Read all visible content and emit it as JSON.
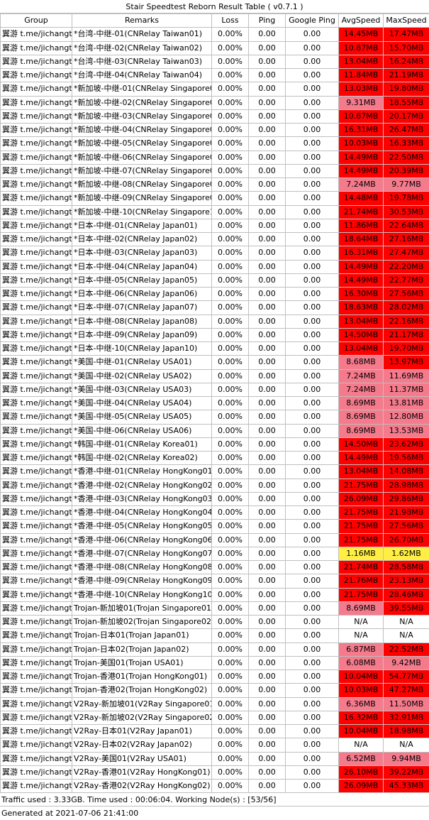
{
  "title": "Stair Speedtest Reborn Result Table ( v0.7.1 )",
  "headers": [
    "Group",
    "Remarks",
    "Loss",
    "Ping",
    "Google Ping",
    "AvgSpeed",
    "MaxSpeed"
  ],
  "colors": {
    "red": "#ff0000",
    "light_red": "#f47a8c",
    "yellow": "#ffee44",
    "white": "#ffffff",
    "border": "#bfbfbf"
  },
  "rows": [
    {
      "group": "翼游 t.me/jichangtj",
      "remarks": "*台湾-中继-01(CNRelay Taiwan01)",
      "loss": "0.00%",
      "ping": "0.00",
      "gping": "0.00",
      "avg": "14.45MB",
      "avg_color": "red",
      "max": "17.47MB",
      "max_color": "red"
    },
    {
      "group": "翼游 t.me/jichangtj",
      "remarks": "*台湾-中继-02(CNRelay Taiwan02)",
      "loss": "0.00%",
      "ping": "0.00",
      "gping": "0.00",
      "avg": "10.87MB",
      "avg_color": "red",
      "max": "15.70MB",
      "max_color": "red"
    },
    {
      "group": "翼游 t.me/jichangtj",
      "remarks": "*台湾-中继-03(CNRelay Taiwan03)",
      "loss": "0.00%",
      "ping": "0.00",
      "gping": "0.00",
      "avg": "13.04MB",
      "avg_color": "red",
      "max": "16.24MB",
      "max_color": "red"
    },
    {
      "group": "翼游 t.me/jichangtj",
      "remarks": "*台湾-中继-04(CNRelay Taiwan04)",
      "loss": "0.00%",
      "ping": "0.00",
      "gping": "0.00",
      "avg": "11.84MB",
      "avg_color": "red",
      "max": "21.19MB",
      "max_color": "red"
    },
    {
      "group": "翼游 t.me/jichangtj",
      "remarks": "*新加坡-中继-01(CNRelay Singapore01)",
      "loss": "0.00%",
      "ping": "0.00",
      "gping": "0.00",
      "avg": "13.03MB",
      "avg_color": "red",
      "max": "19.80MB",
      "max_color": "red"
    },
    {
      "group": "翼游 t.me/jichangtj",
      "remarks": "*新加坡-中继-02(CNRelay Singapore02)",
      "loss": "0.00%",
      "ping": "0.00",
      "gping": "0.00",
      "avg": "9.31MB",
      "avg_color": "light_red",
      "max": "18.55MB",
      "max_color": "red"
    },
    {
      "group": "翼游 t.me/jichangtj",
      "remarks": "*新加坡-中继-03(CNRelay Singapore03)",
      "loss": "0.00%",
      "ping": "0.00",
      "gping": "0.00",
      "avg": "10.87MB",
      "avg_color": "red",
      "max": "20.17MB",
      "max_color": "red"
    },
    {
      "group": "翼游 t.me/jichangtj",
      "remarks": "*新加坡-中继-04(CNRelay Singapore04)",
      "loss": "0.00%",
      "ping": "0.00",
      "gping": "0.00",
      "avg": "16.31MB",
      "avg_color": "red",
      "max": "26.47MB",
      "max_color": "red"
    },
    {
      "group": "翼游 t.me/jichangtj",
      "remarks": "*新加坡-中继-05(CNRelay Singapore05)",
      "loss": "0.00%",
      "ping": "0.00",
      "gping": "0.00",
      "avg": "10.03MB",
      "avg_color": "red",
      "max": "16.33MB",
      "max_color": "red"
    },
    {
      "group": "翼游 t.me/jichangtj",
      "remarks": "*新加坡-中继-06(CNRelay Singapore06)",
      "loss": "0.00%",
      "ping": "0.00",
      "gping": "0.00",
      "avg": "14.49MB",
      "avg_color": "red",
      "max": "22.50MB",
      "max_color": "red"
    },
    {
      "group": "翼游 t.me/jichangtj",
      "remarks": "*新加坡-中继-07(CNRelay Singapore07)",
      "loss": "0.00%",
      "ping": "0.00",
      "gping": "0.00",
      "avg": "14.49MB",
      "avg_color": "red",
      "max": "20.39MB",
      "max_color": "red"
    },
    {
      "group": "翼游 t.me/jichangtj",
      "remarks": "*新加坡-中继-08(CNRelay Singapore08)",
      "loss": "0.00%",
      "ping": "0.00",
      "gping": "0.00",
      "avg": "7.24MB",
      "avg_color": "light_red",
      "max": "9.77MB",
      "max_color": "light_red"
    },
    {
      "group": "翼游 t.me/jichangtj",
      "remarks": "*新加坡-中继-09(CNRelay Singapore09)",
      "loss": "0.00%",
      "ping": "0.00",
      "gping": "0.00",
      "avg": "14.48MB",
      "avg_color": "red",
      "max": "19.78MB",
      "max_color": "red"
    },
    {
      "group": "翼游 t.me/jichangtj",
      "remarks": "*新加坡-中继-10(CNRelay Singapore10)",
      "loss": "0.00%",
      "ping": "0.00",
      "gping": "0.00",
      "avg": "21.74MB",
      "avg_color": "red",
      "max": "30.53MB",
      "max_color": "red"
    },
    {
      "group": "翼游 t.me/jichangtj",
      "remarks": "*日本-中继-01(CNRelay Japan01)",
      "loss": "0.00%",
      "ping": "0.00",
      "gping": "0.00",
      "avg": "11.86MB",
      "avg_color": "red",
      "max": "22.64MB",
      "max_color": "red"
    },
    {
      "group": "翼游 t.me/jichangtj",
      "remarks": "*日本-中继-02(CNRelay Japan02)",
      "loss": "0.00%",
      "ping": "0.00",
      "gping": "0.00",
      "avg": "18.64MB",
      "avg_color": "red",
      "max": "27.16MB",
      "max_color": "red"
    },
    {
      "group": "翼游 t.me/jichangtj",
      "remarks": "*日本-中继-03(CNRelay Japan03)",
      "loss": "0.00%",
      "ping": "0.00",
      "gping": "0.00",
      "avg": "16.31MB",
      "avg_color": "red",
      "max": "27.47MB",
      "max_color": "red"
    },
    {
      "group": "翼游 t.me/jichangtj",
      "remarks": "*日本-中继-04(CNRelay Japan04)",
      "loss": "0.00%",
      "ping": "0.00",
      "gping": "0.00",
      "avg": "14.49MB",
      "avg_color": "red",
      "max": "22.20MB",
      "max_color": "red"
    },
    {
      "group": "翼游 t.me/jichangtj",
      "remarks": "*日本-中继-05(CNRelay Japan05)",
      "loss": "0.00%",
      "ping": "0.00",
      "gping": "0.00",
      "avg": "14.49MB",
      "avg_color": "red",
      "max": "22.77MB",
      "max_color": "red"
    },
    {
      "group": "翼游 t.me/jichangtj",
      "remarks": "*日本-中继-06(CNRelay Japan06)",
      "loss": "0.00%",
      "ping": "0.00",
      "gping": "0.00",
      "avg": "16.30MB",
      "avg_color": "red",
      "max": "27.56MB",
      "max_color": "red"
    },
    {
      "group": "翼游 t.me/jichangtj",
      "remarks": "*日本-中继-07(CNRelay Japan07)",
      "loss": "0.00%",
      "ping": "0.00",
      "gping": "0.00",
      "avg": "18.63MB",
      "avg_color": "red",
      "max": "28.02MB",
      "max_color": "red"
    },
    {
      "group": "翼游 t.me/jichangtj",
      "remarks": "*日本-中继-08(CNRelay Japan08)",
      "loss": "0.00%",
      "ping": "0.00",
      "gping": "0.00",
      "avg": "13.04MB",
      "avg_color": "red",
      "max": "22.16MB",
      "max_color": "red"
    },
    {
      "group": "翼游 t.me/jichangtj",
      "remarks": "*日本-中继-09(CNRelay Japan09)",
      "loss": "0.00%",
      "ping": "0.00",
      "gping": "0.00",
      "avg": "14.50MB",
      "avg_color": "red",
      "max": "21.17MB",
      "max_color": "red"
    },
    {
      "group": "翼游 t.me/jichangtj",
      "remarks": "*日本-中继-10(CNRelay Japan10)",
      "loss": "0.00%",
      "ping": "0.00",
      "gping": "0.00",
      "avg": "13.04MB",
      "avg_color": "red",
      "max": "19.70MB",
      "max_color": "red"
    },
    {
      "group": "翼游 t.me/jichangtj",
      "remarks": "*美国-中继-01(CNRelay USA01)",
      "loss": "0.00%",
      "ping": "0.00",
      "gping": "0.00",
      "avg": "8.68MB",
      "avg_color": "light_red",
      "max": "13.97MB",
      "max_color": "red"
    },
    {
      "group": "翼游 t.me/jichangtj",
      "remarks": "*美国-中继-02(CNRelay USA02)",
      "loss": "0.00%",
      "ping": "0.00",
      "gping": "0.00",
      "avg": "7.24MB",
      "avg_color": "light_red",
      "max": "11.69MB",
      "max_color": "light_red"
    },
    {
      "group": "翼游 t.me/jichangtj",
      "remarks": "*美国-中继-03(CNRelay USA03)",
      "loss": "0.00%",
      "ping": "0.00",
      "gping": "0.00",
      "avg": "7.24MB",
      "avg_color": "light_red",
      "max": "11.37MB",
      "max_color": "light_red"
    },
    {
      "group": "翼游 t.me/jichangtj",
      "remarks": "*美国-中继-04(CNRelay USA04)",
      "loss": "0.00%",
      "ping": "0.00",
      "gping": "0.00",
      "avg": "8.69MB",
      "avg_color": "light_red",
      "max": "13.81MB",
      "max_color": "light_red"
    },
    {
      "group": "翼游 t.me/jichangtj",
      "remarks": "*美国-中继-05(CNRelay USA05)",
      "loss": "0.00%",
      "ping": "0.00",
      "gping": "0.00",
      "avg": "8.69MB",
      "avg_color": "light_red",
      "max": "12.80MB",
      "max_color": "light_red"
    },
    {
      "group": "翼游 t.me/jichangtj",
      "remarks": "*美国-中继-06(CNRelay USA06)",
      "loss": "0.00%",
      "ping": "0.00",
      "gping": "0.00",
      "avg": "8.69MB",
      "avg_color": "light_red",
      "max": "13.53MB",
      "max_color": "light_red"
    },
    {
      "group": "翼游 t.me/jichangtj",
      "remarks": "*韩国-中继-01(CNRelay Korea01)",
      "loss": "0.00%",
      "ping": "0.00",
      "gping": "0.00",
      "avg": "14.50MB",
      "avg_color": "red",
      "max": "23.62MB",
      "max_color": "red"
    },
    {
      "group": "翼游 t.me/jichangtj",
      "remarks": "*韩国-中继-02(CNRelay Korea02)",
      "loss": "0.00%",
      "ping": "0.00",
      "gping": "0.00",
      "avg": "14.49MB",
      "avg_color": "red",
      "max": "19.56MB",
      "max_color": "red"
    },
    {
      "group": "翼游 t.me/jichangtj",
      "remarks": "*香港-中继-01(CNRelay HongKong01)",
      "loss": "0.00%",
      "ping": "0.00",
      "gping": "0.00",
      "avg": "13.04MB",
      "avg_color": "red",
      "max": "14.08MB",
      "max_color": "red"
    },
    {
      "group": "翼游 t.me/jichangtj",
      "remarks": "*香港-中继-02(CNRelay HongKong02)",
      "loss": "0.00%",
      "ping": "0.00",
      "gping": "0.00",
      "avg": "21.75MB",
      "avg_color": "red",
      "max": "28.98MB",
      "max_color": "red"
    },
    {
      "group": "翼游 t.me/jichangtj",
      "remarks": "*香港-中继-03(CNRelay HongKong03)",
      "loss": "0.00%",
      "ping": "0.00",
      "gping": "0.00",
      "avg": "26.09MB",
      "avg_color": "red",
      "max": "29.86MB",
      "max_color": "red"
    },
    {
      "group": "翼游 t.me/jichangtj",
      "remarks": "*香港-中继-04(CNRelay HongKong04)",
      "loss": "0.00%",
      "ping": "0.00",
      "gping": "0.00",
      "avg": "21.75MB",
      "avg_color": "red",
      "max": "21.98MB",
      "max_color": "red"
    },
    {
      "group": "翼游 t.me/jichangtj",
      "remarks": "*香港-中继-05(CNRelay HongKong05)",
      "loss": "0.00%",
      "ping": "0.00",
      "gping": "0.00",
      "avg": "21.75MB",
      "avg_color": "red",
      "max": "27.56MB",
      "max_color": "red"
    },
    {
      "group": "翼游 t.me/jichangtj",
      "remarks": "*香港-中继-06(CNRelay HongKong06)",
      "loss": "0.00%",
      "ping": "0.00",
      "gping": "0.00",
      "avg": "21.75MB",
      "avg_color": "red",
      "max": "26.70MB",
      "max_color": "red"
    },
    {
      "group": "翼游 t.me/jichangtj",
      "remarks": "*香港-中继-07(CNRelay HongKong07)",
      "loss": "0.00%",
      "ping": "0.00",
      "gping": "0.00",
      "avg": "1.16MB",
      "avg_color": "yellow",
      "max": "1.62MB",
      "max_color": "yellow"
    },
    {
      "group": "翼游 t.me/jichangtj",
      "remarks": "*香港-中继-08(CNRelay HongKong08)",
      "loss": "0.00%",
      "ping": "0.00",
      "gping": "0.00",
      "avg": "21.74MB",
      "avg_color": "red",
      "max": "28.58MB",
      "max_color": "red"
    },
    {
      "group": "翼游 t.me/jichangtj",
      "remarks": "*香港-中继-09(CNRelay HongKong09)",
      "loss": "0.00%",
      "ping": "0.00",
      "gping": "0.00",
      "avg": "21.76MB",
      "avg_color": "red",
      "max": "23.13MB",
      "max_color": "red"
    },
    {
      "group": "翼游 t.me/jichangtj",
      "remarks": "*香港-中继-10(CNRelay HongKong10)",
      "loss": "0.00%",
      "ping": "0.00",
      "gping": "0.00",
      "avg": "21.75MB",
      "avg_color": "red",
      "max": "28.46MB",
      "max_color": "red"
    },
    {
      "group": "翼游 t.me/jichangtj",
      "remarks": "Trojan-新加坡01(Trojan Singapore01)",
      "loss": "0.00%",
      "ping": "0.00",
      "gping": "0.00",
      "avg": "8.69MB",
      "avg_color": "light_red",
      "max": "39.55MB",
      "max_color": "red"
    },
    {
      "group": "翼游 t.me/jichangtj",
      "remarks": "Trojan-新加坡02(Trojan Singapore02)",
      "loss": "0.00%",
      "ping": "0.00",
      "gping": "0.00",
      "avg": "N/A",
      "avg_color": "white",
      "max": "N/A",
      "max_color": "white"
    },
    {
      "group": "翼游 t.me/jichangtj",
      "remarks": "Trojan-日本01(Trojan Japan01)",
      "loss": "0.00%",
      "ping": "0.00",
      "gping": "0.00",
      "avg": "N/A",
      "avg_color": "white",
      "max": "N/A",
      "max_color": "white"
    },
    {
      "group": "翼游 t.me/jichangtj",
      "remarks": "Trojan-日本02(Trojan Japan02)",
      "loss": "0.00%",
      "ping": "0.00",
      "gping": "0.00",
      "avg": "6.87MB",
      "avg_color": "light_red",
      "max": "22.52MB",
      "max_color": "red"
    },
    {
      "group": "翼游 t.me/jichangtj",
      "remarks": "Trojan-美国01(Trojan USA01)",
      "loss": "0.00%",
      "ping": "0.00",
      "gping": "0.00",
      "avg": "6.08MB",
      "avg_color": "light_red",
      "max": "9.42MB",
      "max_color": "light_red"
    },
    {
      "group": "翼游 t.me/jichangtj",
      "remarks": "Trojan-香港01(Trojan HongKong01)",
      "loss": "0.00%",
      "ping": "0.00",
      "gping": "0.00",
      "avg": "10.04MB",
      "avg_color": "red",
      "max": "54.77MB",
      "max_color": "red"
    },
    {
      "group": "翼游 t.me/jichangtj",
      "remarks": "Trojan-香港02(Trojan HongKong02)",
      "loss": "0.00%",
      "ping": "0.00",
      "gping": "0.00",
      "avg": "10.03MB",
      "avg_color": "red",
      "max": "47.27MB",
      "max_color": "red"
    },
    {
      "group": "翼游 t.me/jichangtj",
      "remarks": "V2Ray-新加坡01(V2Ray Singapore01)",
      "loss": "0.00%",
      "ping": "0.00",
      "gping": "0.00",
      "avg": "6.36MB",
      "avg_color": "light_red",
      "max": "11.50MB",
      "max_color": "light_red"
    },
    {
      "group": "翼游 t.me/jichangtj",
      "remarks": "V2Ray-新加坡02(V2Ray Singapore02)",
      "loss": "0.00%",
      "ping": "0.00",
      "gping": "0.00",
      "avg": "16.32MB",
      "avg_color": "red",
      "max": "32.91MB",
      "max_color": "red"
    },
    {
      "group": "翼游 t.me/jichangtj",
      "remarks": "V2Ray-日本01(V2Ray Japan01)",
      "loss": "0.00%",
      "ping": "0.00",
      "gping": "0.00",
      "avg": "10.04MB",
      "avg_color": "red",
      "max": "18.98MB",
      "max_color": "red"
    },
    {
      "group": "翼游 t.me/jichangtj",
      "remarks": "V2Ray-日本02(V2Ray Japan02)",
      "loss": "0.00%",
      "ping": "0.00",
      "gping": "0.00",
      "avg": "N/A",
      "avg_color": "white",
      "max": "N/A",
      "max_color": "white"
    },
    {
      "group": "翼游 t.me/jichangtj",
      "remarks": "V2Ray-美国01(V2Ray USA01)",
      "loss": "0.00%",
      "ping": "0.00",
      "gping": "0.00",
      "avg": "6.52MB",
      "avg_color": "light_red",
      "max": "9.94MB",
      "max_color": "light_red"
    },
    {
      "group": "翼游 t.me/jichangtj",
      "remarks": "V2Ray-香港01(V2Ray HongKong01)",
      "loss": "0.00%",
      "ping": "0.00",
      "gping": "0.00",
      "avg": "26.10MB",
      "avg_color": "red",
      "max": "39.22MB",
      "max_color": "red"
    },
    {
      "group": "翼游 t.me/jichangtj",
      "remarks": "V2Ray-香港02(V2Ray HongKong02)",
      "loss": "0.00%",
      "ping": "0.00",
      "gping": "0.00",
      "avg": "26.09MB",
      "avg_color": "red",
      "max": "45.33MB",
      "max_color": "red"
    }
  ],
  "footer": {
    "traffic": "Traffic used : 3.33GB. Time used : 00:06:04. Working Node(s) : [53/56]",
    "generated": "Generated at 2021-07-06 21:41:00"
  }
}
